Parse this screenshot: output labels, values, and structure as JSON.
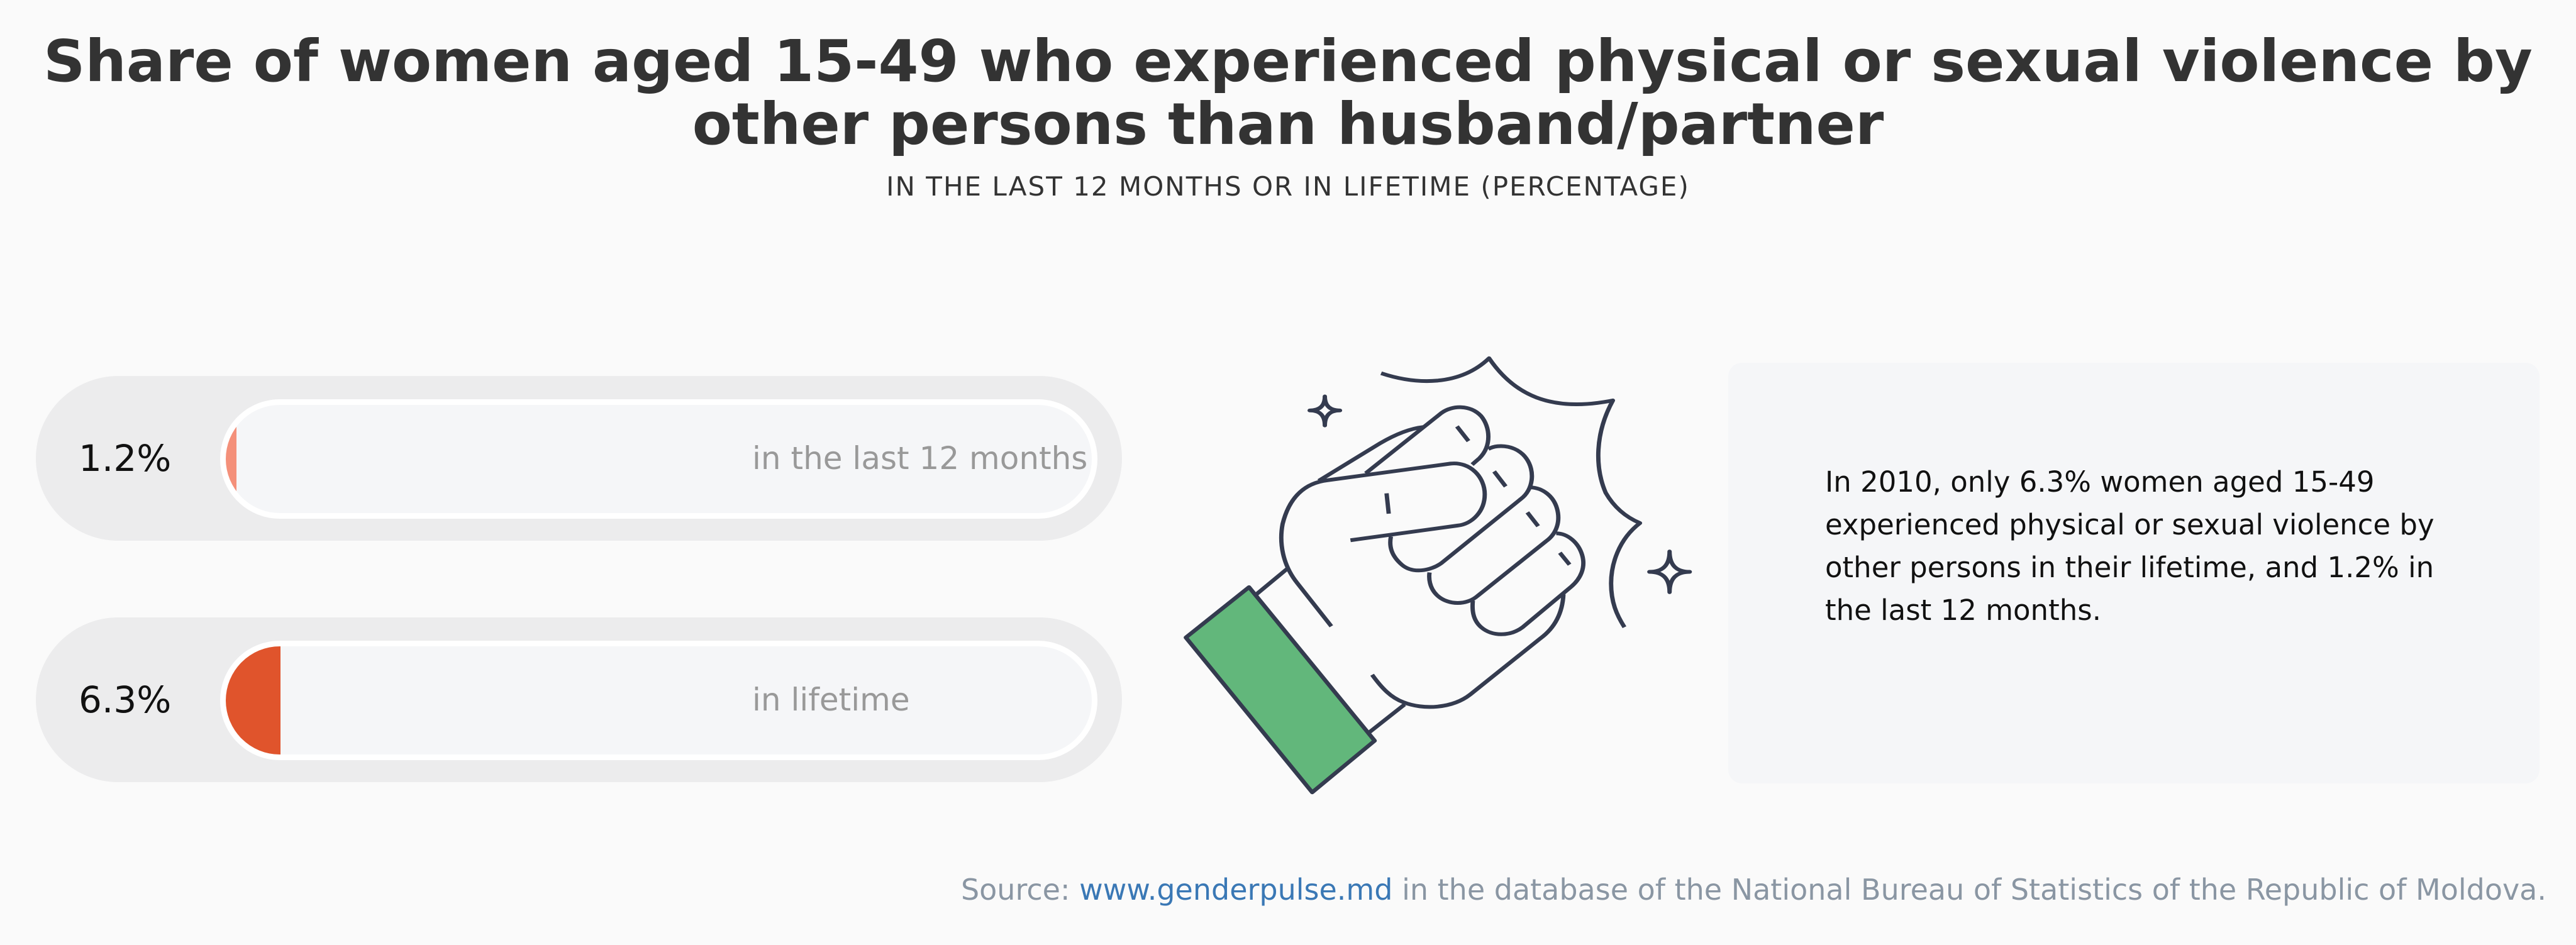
{
  "title": "Share of women aged 15-49 who experienced physical or sexual violence by other persons than husband/partner",
  "subtitle": "IN THE LAST 12 MONTHS OR IN LIFETIME (PERCENTAGE)",
  "chart_data": {
    "type": "bar",
    "orientation": "horizontal",
    "categories": [
      "in the last 12 months",
      "in lifetime"
    ],
    "values": [
      1.2,
      6.3
    ],
    "value_labels": [
      "1.2%",
      "6.3%"
    ],
    "xlim": [
      0,
      100
    ],
    "unit": "%",
    "colors": [
      "#f4907a",
      "#e0542c"
    ]
  },
  "note": "In 2010, only 6.3% women aged 15-49 experienced physical or sexual violence by other persons in their lifetime, and 1.2% in the last 12 months.",
  "illustration": {
    "icon": "fist-punch-icon",
    "sleeve_color": "#62b77b",
    "line_color": "#343b4f"
  },
  "source": {
    "prefix": "Source: ",
    "link": "www.genderpulse.md",
    "suffix": " in the database of the National Bureau of Statistics of the Republic of Moldova.",
    "link_color": "#3a78b5"
  }
}
